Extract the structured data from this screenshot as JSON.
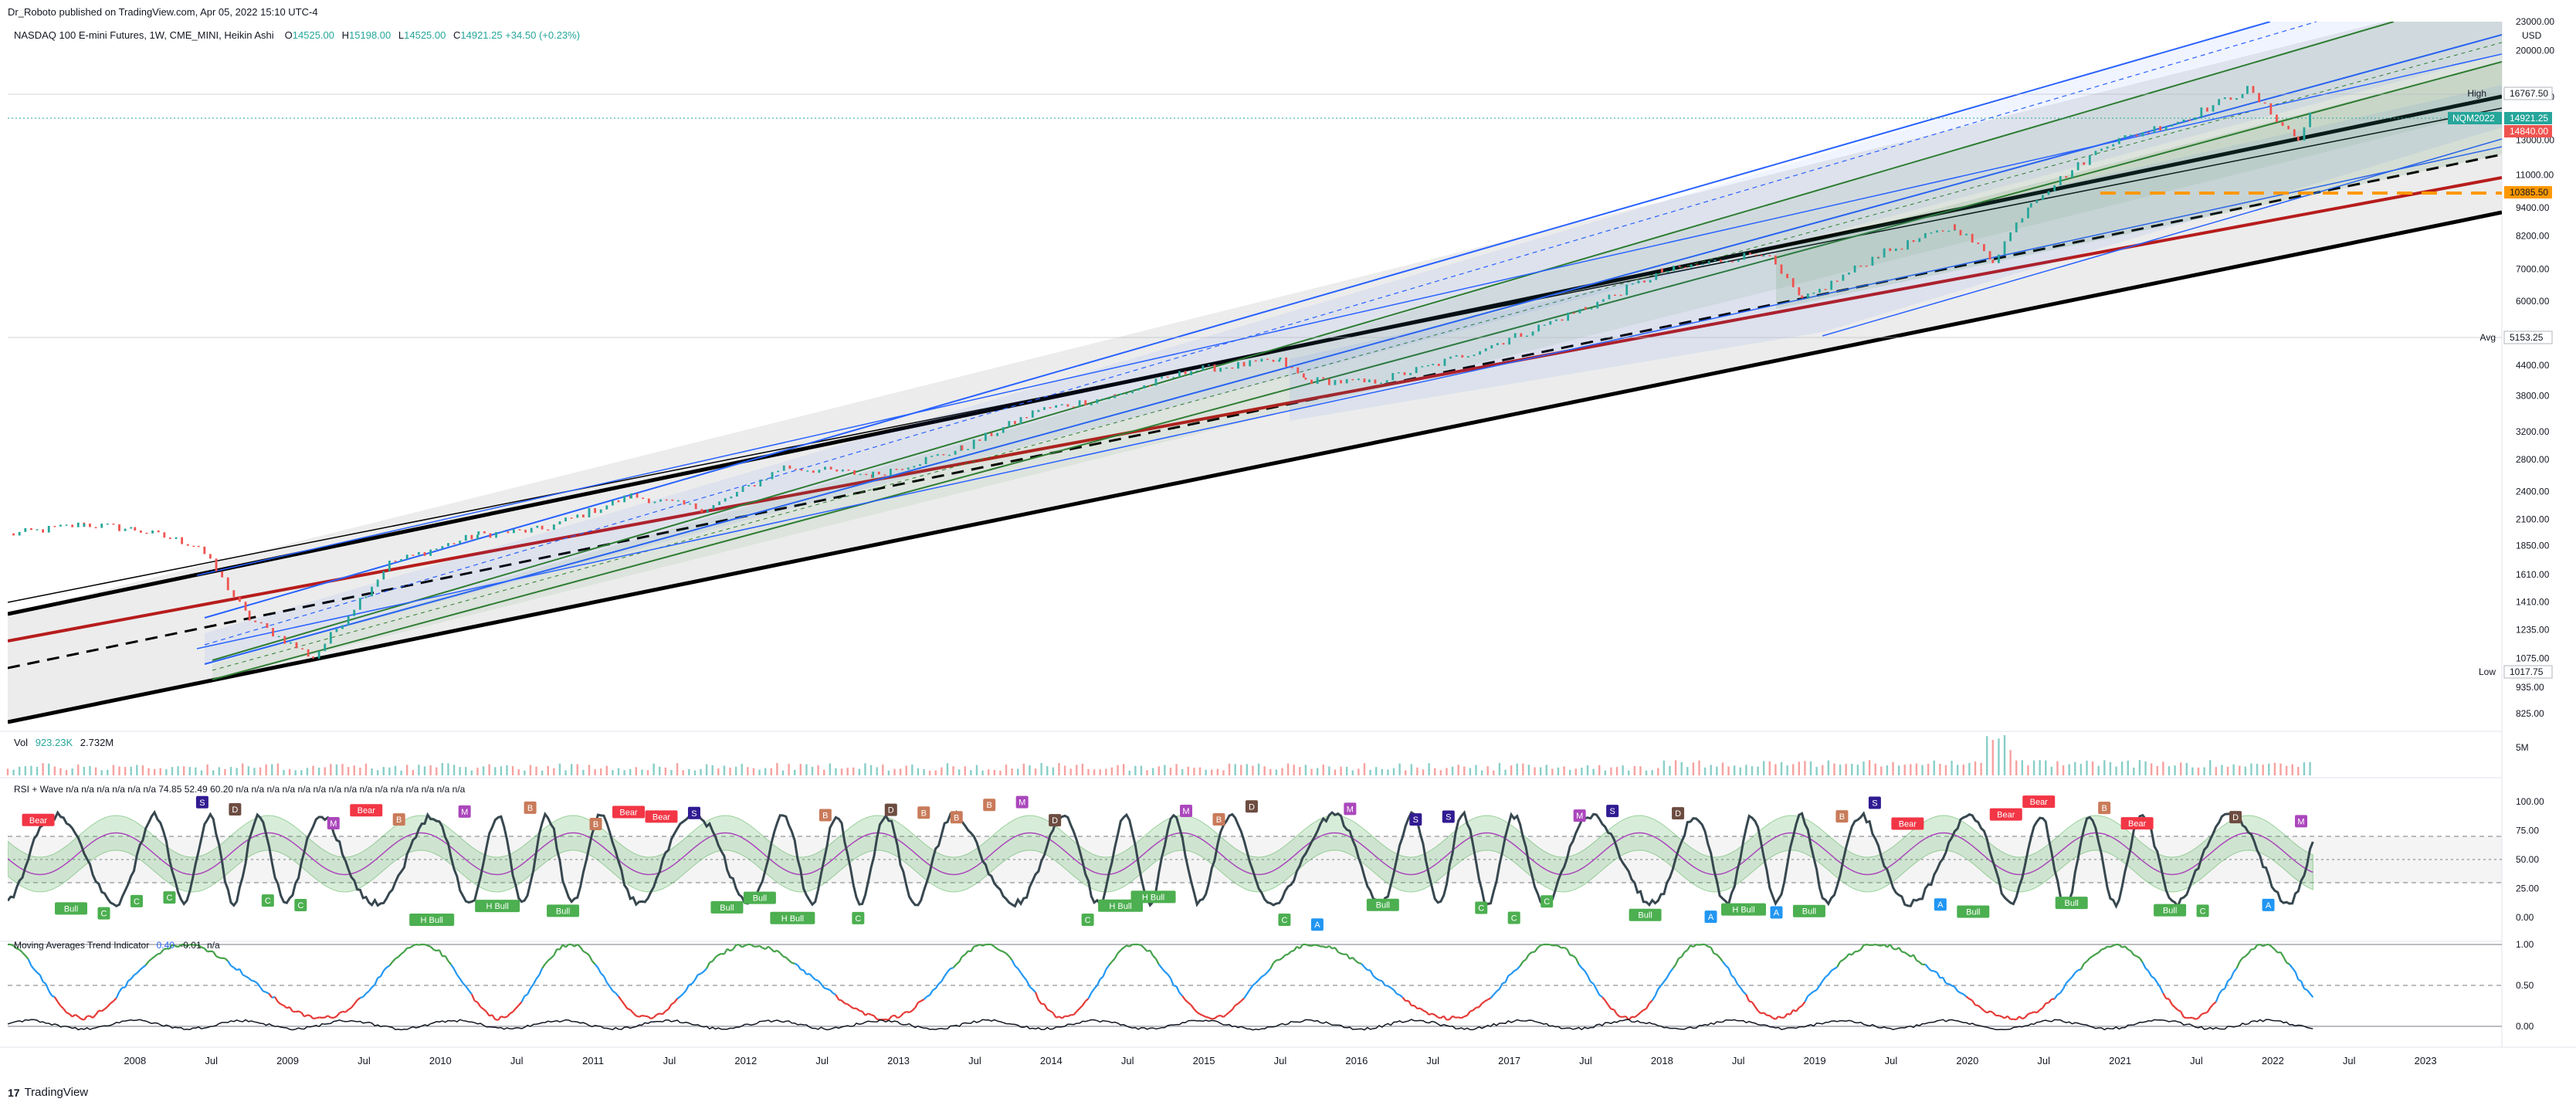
{
  "header": {
    "publisher": "Dr_Roboto published on TradingView.com, Apr 05, 2022 15:10 UTC-4",
    "symbol": "NASDAQ 100 E-mini Futures, 1W, CME_MINI, Heikin Ashi",
    "o_label": "O",
    "o_value": "14525.00",
    "h_label": "H",
    "h_value": "15198.00",
    "l_label": "L",
    "l_value": "14525.00",
    "c_label": "C",
    "c_value": "14921.25 +34.50 (+0.23%)"
  },
  "footer": {
    "brand": "TradingView",
    "mark": "17"
  },
  "colors": {
    "up": "#26a69a",
    "down": "#ef5350",
    "channel_blue": "#2962ff",
    "channel_green": "#2e7d32",
    "support_red": "#b71c1c",
    "orange_level": "#ff9800",
    "bear_badge": "#f23645",
    "bull_badge": "#4caf50",
    "a_badge": "#2196f3",
    "s_badge": "#311b92"
  },
  "chart_data": [
    {
      "type": "line",
      "title": "NASDAQ 100 E-mini Futures, 1W, CME_MINI, Heikin Ashi",
      "scale": "log",
      "ylim": [
        760,
        23000
      ],
      "x_range": [
        "2007-03",
        "2023-07"
      ],
      "y_ticks": [
        "23000.00",
        "20000.00",
        "16000.00",
        "13000.00",
        "11000.00",
        "9400.00",
        "8200.00",
        "7000.00",
        "6000.00",
        "4400.00",
        "3800.00",
        "3200.00",
        "2800.00",
        "2400.00",
        "2100.00",
        "1850.00",
        "1610.00",
        "1410.00",
        "1235.00",
        "1075.00",
        "935.00",
        "825.00"
      ],
      "currency": "USD",
      "x_ticks": [
        "2008",
        "Jul",
        "2009",
        "Jul",
        "2010",
        "Jul",
        "2011",
        "Jul",
        "2012",
        "Jul",
        "2013",
        "Jul",
        "2014",
        "Jul",
        "2015",
        "Jul",
        "2016",
        "Jul",
        "2017",
        "Jul",
        "2018",
        "Jul",
        "2019",
        "Jul",
        "2020",
        "Jul",
        "2021",
        "Jul",
        "2022",
        "Jul",
        "2023"
      ],
      "series": [
        {
          "x": [
            "2007-03",
            "2007-09",
            "2008-01",
            "2008-06",
            "2008-10",
            "2009-03",
            "2009-09",
            "2010-04",
            "2010-09",
            "2011-04",
            "2011-10",
            "2012-04",
            "2012-11",
            "2013-06",
            "2013-12",
            "2014-06",
            "2014-12",
            "2015-07",
            "2015-09",
            "2016-02",
            "2016-07",
            "2017-01",
            "2017-07",
            "2018-01",
            "2018-09",
            "2018-12",
            "2019-06",
            "2019-12",
            "2020-03",
            "2020-06",
            "2020-12",
            "2021-06",
            "2021-11",
            "2022-03",
            "2022-04"
          ],
          "y": [
            1950,
            2050,
            2000,
            1850,
            1300,
            1080,
            1700,
            1950,
            2000,
            2350,
            2200,
            2700,
            2600,
            2950,
            3550,
            3800,
            4300,
            4500,
            4100,
            4050,
            4400,
            5000,
            5800,
            6900,
            7600,
            6000,
            7500,
            8600,
            7300,
            9700,
            12800,
            14400,
            16600,
            13000,
            14921.25
          ]
        }
      ],
      "price_labels": {
        "high": {
          "label": "High",
          "value": "16767.50"
        },
        "last": {
          "label": "NQM2022",
          "value": "14921.25"
        },
        "ref": {
          "value": "14840.00"
        },
        "level": {
          "value": "10385.50"
        },
        "avg": {
          "label": "Avg",
          "value": "5153.25"
        },
        "low": {
          "label": "Low",
          "value": "1017.75"
        }
      },
      "annotations": [
        "regression channels (blue, green)",
        "long-term parallel channel (black)",
        "support trendline (red)",
        "horizontal level 10385.50 (orange dashed)"
      ]
    },
    {
      "type": "bar",
      "title": "Vol",
      "legend": [
        "Vol",
        "923.23K",
        "2.732M"
      ],
      "y_ticks": [
        "5M"
      ]
    },
    {
      "type": "line",
      "title": "RSI + Wave",
      "legend_text": "RSI + Wave  n/a  n/a  n/a  n/a  n/a  n/a  74.85  52.49  60.20  n/a  n/a  n/a  n/a  n/a  n/a  n/a  n/a  n/a  n/a  n/a  n/a  n/a  n/a  n/a",
      "ylim": [
        0,
        100
      ],
      "y_ticks": [
        "100.00",
        "75.00",
        "50.00",
        "25.00",
        "0.00"
      ],
      "signal_labels": [
        "Bear",
        "Bull",
        "H Bull",
        "A",
        "S",
        "B",
        "C",
        "D",
        "M"
      ]
    },
    {
      "type": "line",
      "title": "Moving Averages Trend Indicator",
      "legend": [
        "Moving Averages Trend Indicator",
        "0.40",
        "-0.01",
        "n/a"
      ],
      "ylim": [
        -0.1,
        1.0
      ],
      "y_ticks": [
        "1.00",
        "0.50",
        "0.00"
      ]
    }
  ]
}
